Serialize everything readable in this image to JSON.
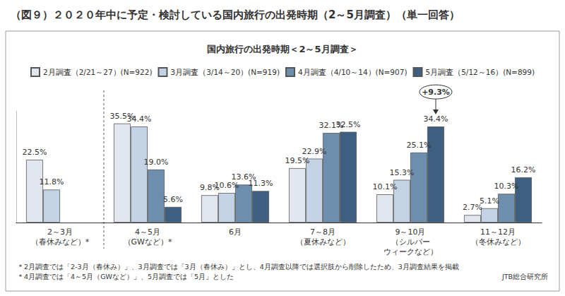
{
  "chart_data": {
    "type": "bar",
    "title": "（図９）２０２０年中に予定・検討している国内旅行の出発時期（2～5月調査）（単一回答）",
    "subtitle": "国内旅行の出発時期＜2～5月調査＞",
    "categories": [
      "2～3月\n（春休みなど）*",
      "4～5月\n（GWなど）*",
      "6月",
      "7～8月\n（夏休みなど）",
      "9～10月\n（シルバー\nウィークなど）",
      "11～12月\n（冬休みなど）"
    ],
    "series": [
      {
        "name": "2月調査（2/21～27）(N=922)",
        "color": "#e1e5ee",
        "values": [
          22.5,
          35.5,
          9.8,
          19.5,
          10.1,
          2.7
        ],
        "value_labels": [
          "22.5%",
          "35.5%",
          "9.8%",
          "19.5%",
          "10.1%",
          "2.7%"
        ]
      },
      {
        "name": "3月調査（3/14～20）(N=919)",
        "color": "#c3d2e4",
        "values": [
          11.8,
          34.4,
          10.6,
          22.9,
          15.3,
          5.1
        ],
        "value_labels": [
          "11.8%",
          "34.4%",
          "10.6%",
          "22.9%",
          "15.3%",
          "5.1%"
        ]
      },
      {
        "name": "4月調査（4/10～14）(N=907)",
        "color": "#6e8eae",
        "values": [
          null,
          19.0,
          13.6,
          32.1,
          25.1,
          10.3
        ],
        "value_labels": [
          null,
          "19.0%",
          "13.6%",
          "32.1%",
          "25.1%",
          "10.3%"
        ]
      },
      {
        "name": "5月調査（5/12～16）(N=899)",
        "color": "#3e5f7f",
        "values": [
          null,
          5.6,
          11.3,
          32.5,
          34.4,
          16.2
        ],
        "value_labels": [
          null,
          "5.6%",
          "11.3%",
          "32.5%",
          "34.4%",
          "16.2%"
        ]
      }
    ],
    "ylim": [
      0,
      40
    ],
    "tick_labels": "x",
    "grid": false,
    "legend": "top",
    "data_labels": true,
    "annotations": [
      {
        "text": "+9.3%",
        "category": "9～10月\n（シルバー\nウィークなど）",
        "series": "5月調査（5/12～16）(N=899)"
      }
    ],
    "notes": [
      "＊2月調査では「2-3月（春休み）」、3月調査では「3月（春休み）」とし、4月調査以降では選択肢から削除したため、3月調査結果を掲載",
      "＊4月調査では「4～5月（GWなど）」、5月調査では「5月」とした"
    ],
    "source": "JTB総合研究所"
  }
}
